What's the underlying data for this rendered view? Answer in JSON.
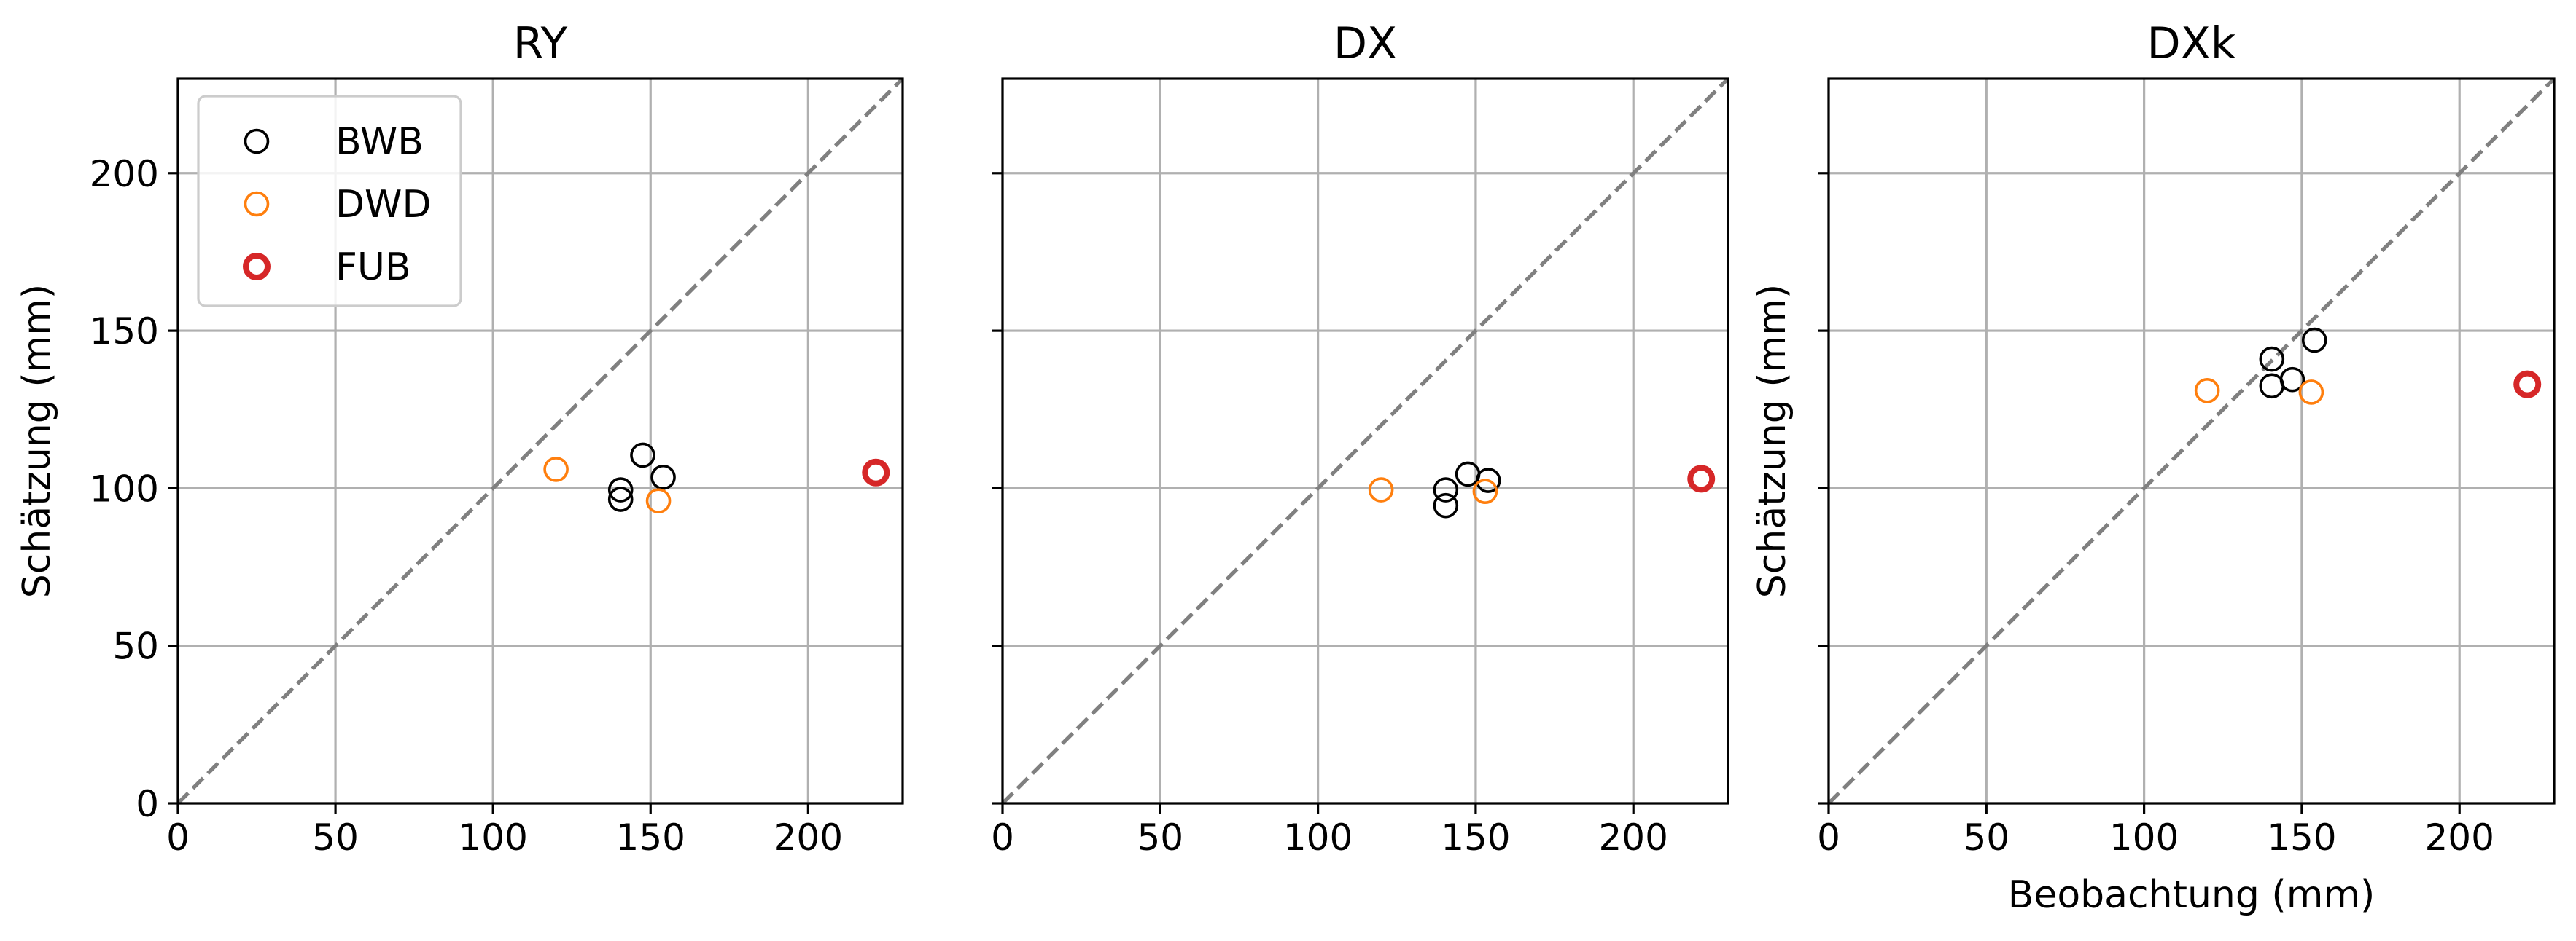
{
  "figure": {
    "shared_ylabel": "Schätzung (mm)",
    "shared_xlabel": "Beobachtung (mm)"
  },
  "series_styles": [
    {
      "name": "BWB",
      "color": "#000000",
      "marker": "hollow-circle",
      "thick": false
    },
    {
      "name": "DWD",
      "color": "#ff7f0e",
      "marker": "hollow-circle",
      "thick": false
    },
    {
      "name": "FUB",
      "color": "#d62728",
      "marker": "hollow-circle",
      "thick": true
    }
  ],
  "chart_data": [
    {
      "type": "scatter",
      "title": "RY",
      "xlabel": "",
      "ylabel": "Schätzung (mm)",
      "xlim": [
        0,
        230
      ],
      "ylim": [
        0,
        230
      ],
      "xticks": [
        0,
        50,
        100,
        150,
        200
      ],
      "yticks": [
        0,
        50,
        100,
        150,
        200
      ],
      "show_ytick_labels": true,
      "grid": true,
      "identity_line": true,
      "legend": "upper-left",
      "series": [
        {
          "name": "BWB",
          "points": [
            [
              140.5,
              99.5
            ],
            [
              140.5,
              96.5
            ],
            [
              147.5,
              110.5
            ],
            [
              154,
              103.5
            ]
          ]
        },
        {
          "name": "DWD",
          "points": [
            [
              120,
              106
            ],
            [
              152.5,
              96
            ]
          ]
        },
        {
          "name": "FUB",
          "points": [
            [
              221.5,
              105
            ]
          ]
        }
      ]
    },
    {
      "type": "scatter",
      "title": "DX",
      "xlabel": "",
      "ylabel": "",
      "xlim": [
        0,
        230
      ],
      "ylim": [
        0,
        230
      ],
      "xticks": [
        0,
        50,
        100,
        150,
        200
      ],
      "yticks": [
        0,
        50,
        100,
        150,
        200
      ],
      "show_ytick_labels": false,
      "grid": true,
      "identity_line": true,
      "legend": "none",
      "series": [
        {
          "name": "BWB",
          "points": [
            [
              140.5,
              99.5
            ],
            [
              140.5,
              94.5
            ],
            [
              147.5,
              104.5
            ],
            [
              154,
              102.5
            ]
          ]
        },
        {
          "name": "DWD",
          "points": [
            [
              120,
              99.5
            ],
            [
              153,
              99
            ]
          ]
        },
        {
          "name": "FUB",
          "points": [
            [
              221.5,
              103
            ]
          ]
        }
      ]
    },
    {
      "type": "scatter",
      "title": "DXk",
      "xlabel": "Beobachtung (mm)",
      "ylabel": "Schätzung (mm)",
      "xlim": [
        0,
        230
      ],
      "ylim": [
        0,
        230
      ],
      "xticks": [
        0,
        50,
        100,
        150,
        200
      ],
      "yticks": [
        0,
        50,
        100,
        150,
        200
      ],
      "show_ytick_labels": false,
      "grid": true,
      "identity_line": true,
      "legend": "none",
      "series": [
        {
          "name": "BWB",
          "points": [
            [
              140.5,
              141
            ],
            [
              140.5,
              132.5
            ],
            [
              147,
              134.5
            ],
            [
              154,
              147
            ]
          ]
        },
        {
          "name": "DWD",
          "points": [
            [
              120,
              131
            ],
            [
              153,
              130.5
            ]
          ]
        },
        {
          "name": "FUB",
          "points": [
            [
              221.5,
              133
            ]
          ]
        }
      ]
    }
  ]
}
